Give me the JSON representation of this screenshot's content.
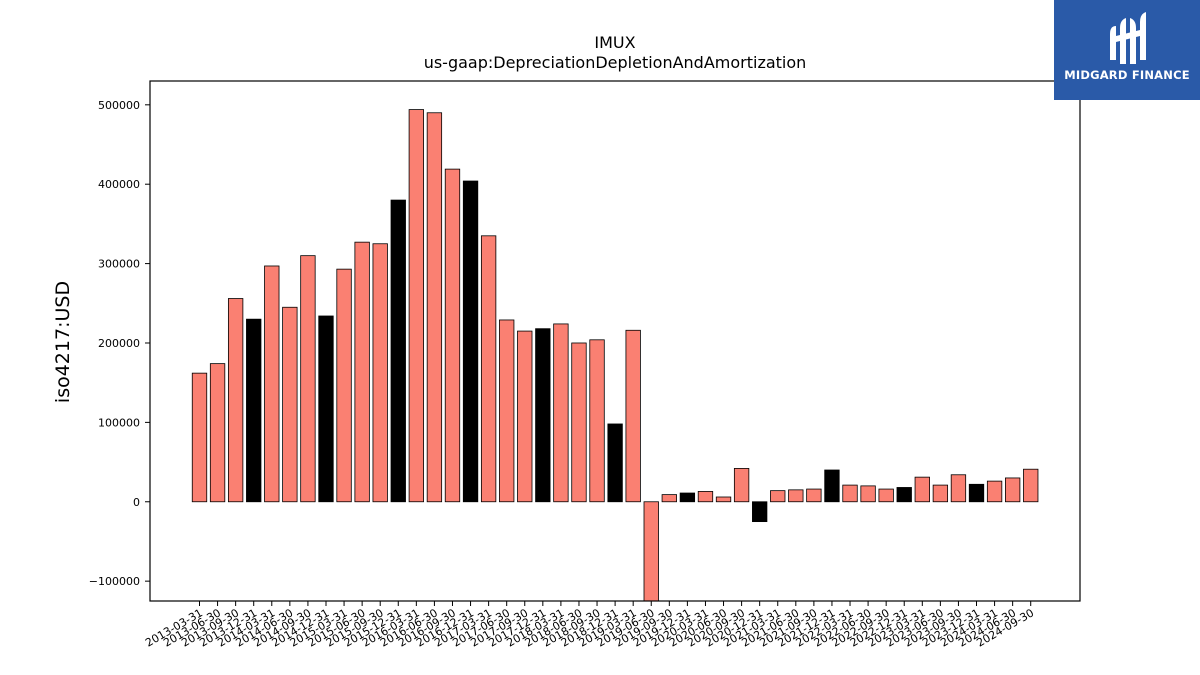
{
  "chart_data": {
    "type": "bar",
    "title": "IMUX",
    "subtitle": "us-gaap:DepreciationDepletionAndAmortization",
    "ylabel": "iso4217:USD",
    "ylim": [
      -125000,
      530000
    ],
    "yticks": [
      -100000,
      0,
      100000,
      200000,
      300000,
      400000,
      500000
    ],
    "ytick_labels": [
      "−100000",
      "0",
      "100000",
      "200000",
      "300000",
      "400000",
      "500000"
    ],
    "grid": false,
    "colors": {
      "quarterly": "#fa8072",
      "annual": "#000000",
      "edge": "#000000"
    },
    "categories": [
      "2013-03-31",
      "2013-06-30",
      "2013-09-30",
      "2013-12-31",
      "2014-03-31",
      "2014-06-30",
      "2014-09-30",
      "2014-12-31",
      "2015-03-31",
      "2015-06-30",
      "2015-09-30",
      "2015-12-31",
      "2016-03-31",
      "2016-06-30",
      "2016-09-30",
      "2016-12-31",
      "2017-03-31",
      "2017-06-30",
      "2017-09-30",
      "2017-12-31",
      "2018-03-31",
      "2018-06-30",
      "2018-09-30",
      "2018-12-31",
      "2019-03-31",
      "2019-06-30",
      "2019-09-30",
      "2019-12-31",
      "2020-03-31",
      "2020-06-30",
      "2020-09-30",
      "2020-12-31",
      "2021-03-31",
      "2021-06-30",
      "2021-09-30",
      "2021-12-31",
      "2022-03-31",
      "2022-06-30",
      "2022-09-30",
      "2022-12-31",
      "2023-03-31",
      "2023-06-30",
      "2023-09-30",
      "2023-12-31",
      "2024-03-31",
      "2024-06-30",
      "2024-09-30"
    ],
    "values": [
      162000,
      174000,
      256000,
      230000,
      297000,
      245000,
      310000,
      234000,
      293000,
      327000,
      325000,
      380000,
      494000,
      490000,
      419000,
      404000,
      335000,
      229000,
      215000,
      218000,
      224000,
      200000,
      204000,
      98000,
      216000,
      -135000,
      9000,
      11000,
      13000,
      6000,
      42000,
      -25000,
      14000,
      15000,
      16000,
      40000,
      21000,
      20000,
      16000,
      18000,
      31000,
      21000,
      34000,
      22000,
      26000,
      30000,
      41000
    ],
    "annual": [
      false,
      false,
      false,
      true,
      false,
      false,
      false,
      true,
      false,
      false,
      false,
      true,
      false,
      false,
      false,
      true,
      false,
      false,
      false,
      true,
      false,
      false,
      false,
      true,
      false,
      false,
      false,
      true,
      false,
      false,
      false,
      true,
      false,
      false,
      false,
      true,
      false,
      false,
      false,
      true,
      false,
      false,
      false,
      true,
      false,
      false,
      false
    ]
  },
  "logo": {
    "brand": "MIDGARD FINANCE",
    "icon": "midgard-logo-icon"
  }
}
